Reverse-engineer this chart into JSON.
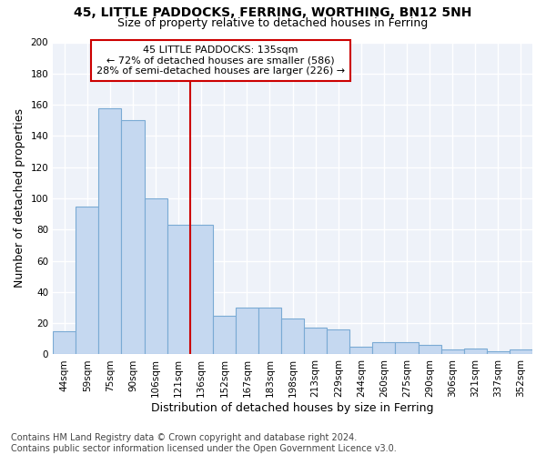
{
  "title1": "45, LITTLE PADDOCKS, FERRING, WORTHING, BN12 5NH",
  "title2": "Size of property relative to detached houses in Ferring",
  "xlabel": "Distribution of detached houses by size in Ferring",
  "ylabel": "Number of detached properties",
  "categories": [
    "44sqm",
    "59sqm",
    "75sqm",
    "90sqm",
    "106sqm",
    "121sqm",
    "136sqm",
    "152sqm",
    "167sqm",
    "183sqm",
    "198sqm",
    "213sqm",
    "229sqm",
    "244sqm",
    "260sqm",
    "275sqm",
    "290sqm",
    "306sqm",
    "321sqm",
    "337sqm",
    "352sqm"
  ],
  "values": [
    15,
    95,
    158,
    150,
    100,
    83,
    83,
    25,
    30,
    30,
    23,
    17,
    16,
    5,
    8,
    8,
    6,
    3,
    4,
    2,
    3
  ],
  "bar_color": "#c5d8f0",
  "bar_edge_color": "#7aaad4",
  "marker_line_index": 6,
  "annotation_line1": "45 LITTLE PADDOCKS: 135sqm",
  "annotation_line2": "← 72% of detached houses are smaller (586)",
  "annotation_line3": "28% of semi-detached houses are larger (226) →",
  "annotation_box_color": "#cc0000",
  "ylim": [
    0,
    200
  ],
  "yticks": [
    0,
    20,
    40,
    60,
    80,
    100,
    120,
    140,
    160,
    180,
    200
  ],
  "footnote1": "Contains HM Land Registry data © Crown copyright and database right 2024.",
  "footnote2": "Contains public sector information licensed under the Open Government Licence v3.0.",
  "bg_color": "#ffffff",
  "plot_bg_color": "#eef2f9",
  "grid_color": "#ffffff",
  "title1_fontsize": 10,
  "title2_fontsize": 9,
  "axis_label_fontsize": 9,
  "tick_fontsize": 7.5,
  "footnote_fontsize": 7
}
